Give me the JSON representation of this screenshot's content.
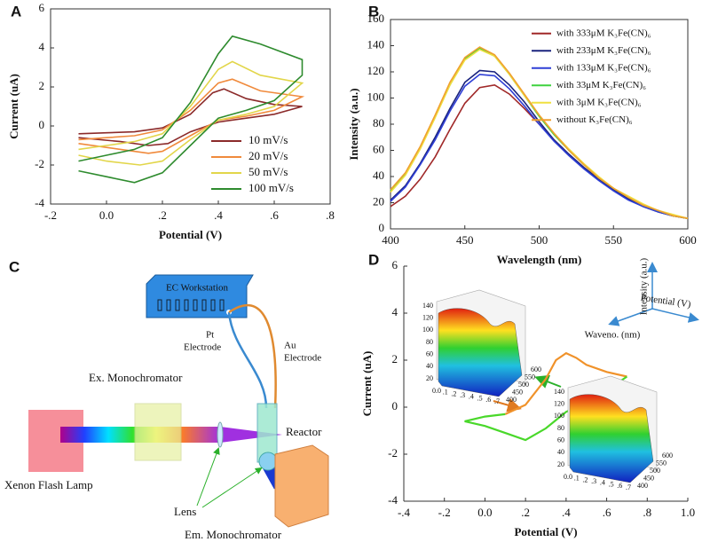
{
  "chart_data": [
    {
      "type": "line",
      "panel_label": "A",
      "xlabel": "Potential (V)",
      "ylabel": "Current (uA)",
      "xlim": [
        -0.2,
        0.8
      ],
      "ylim": [
        -4,
        6
      ],
      "xticks": [
        {
          "value": -0.2,
          "label": "-.2"
        },
        {
          "value": 0,
          "label": "0.0"
        },
        {
          "value": 0.2,
          "label": ".2"
        },
        {
          "value": 0.4,
          "label": ".4"
        },
        {
          "value": 0.6,
          "label": ".6"
        },
        {
          "value": 0.8,
          "label": ".8"
        }
      ],
      "yticks": [
        -4,
        -2,
        0,
        2,
        4,
        6
      ],
      "frame": true,
      "legend": "lower right",
      "series": [
        {
          "name": "10 mV/s",
          "color": "#8b2a2a",
          "x": [
            -0.1,
            0,
            0.1,
            0.2,
            0.3,
            0.38,
            0.42,
            0.5,
            0.6,
            0.7,
            0.6,
            0.5,
            0.4,
            0.3,
            0.22,
            0.15,
            0.05,
            -0.1
          ],
          "values": [
            -0.4,
            -0.35,
            -0.3,
            -0.1,
            0.6,
            1.7,
            1.9,
            1.4,
            1.1,
            1.0,
            0.6,
            0.4,
            0.2,
            -0.3,
            -0.9,
            -1.0,
            -0.8,
            -0.6
          ]
        },
        {
          "name": "20 mV/s",
          "color": "#f08a3c",
          "x": [
            -0.1,
            0,
            0.1,
            0.2,
            0.3,
            0.4,
            0.45,
            0.55,
            0.7,
            0.6,
            0.5,
            0.4,
            0.3,
            0.2,
            0.15,
            0.05,
            -0.1
          ],
          "values": [
            -0.7,
            -0.6,
            -0.5,
            -0.2,
            0.8,
            2.2,
            2.4,
            1.8,
            1.5,
            0.8,
            0.5,
            0.3,
            -0.5,
            -1.3,
            -1.4,
            -1.2,
            -0.9
          ]
        },
        {
          "name": "50 mV/s",
          "color": "#e2d64a",
          "x": [
            -0.1,
            0,
            0.1,
            0.2,
            0.3,
            0.4,
            0.45,
            0.55,
            0.7,
            0.6,
            0.5,
            0.4,
            0.3,
            0.2,
            0.12,
            0,
            -0.1
          ],
          "values": [
            -1.2,
            -1.0,
            -0.8,
            -0.4,
            1.0,
            2.9,
            3.3,
            2.6,
            2.2,
            1.0,
            0.6,
            0.3,
            -0.7,
            -1.8,
            -2.0,
            -1.8,
            -1.5
          ]
        },
        {
          "name": "100 mV/s",
          "color": "#2e8b2e",
          "x": [
            -0.1,
            0,
            0.1,
            0.2,
            0.3,
            0.4,
            0.45,
            0.55,
            0.7,
            0.7,
            0.6,
            0.5,
            0.4,
            0.3,
            0.2,
            0.1,
            0,
            -0.1
          ],
          "values": [
            -1.8,
            -1.5,
            -1.2,
            -0.6,
            1.2,
            3.7,
            4.6,
            4.2,
            3.4,
            2.6,
            1.3,
            0.8,
            0.4,
            -1.0,
            -2.4,
            -2.9,
            -2.6,
            -2.3
          ]
        }
      ]
    },
    {
      "type": "line",
      "panel_label": "B",
      "xlabel": "Wavelength (nm)",
      "ylabel": "Intensity (a.u.)",
      "xlim": [
        400,
        600
      ],
      "ylim": [
        0,
        160
      ],
      "xticks": [
        400,
        450,
        500,
        550,
        600
      ],
      "yticks": [
        0,
        20,
        40,
        60,
        80,
        100,
        120,
        140,
        160
      ],
      "frame": true,
      "legend": "upper right",
      "x": [
        400,
        410,
        420,
        430,
        440,
        450,
        460,
        470,
        480,
        490,
        500,
        510,
        520,
        530,
        540,
        550,
        560,
        570,
        580,
        590,
        600
      ],
      "series": [
        {
          "name": "with 333μM K₃Fe(CN)₆",
          "color": "#a02828",
          "values": [
            17,
            25,
            38,
            55,
            76,
            96,
            108,
            110,
            103,
            92,
            80,
            68,
            57,
            47,
            38,
            30,
            24,
            18,
            13,
            10,
            8
          ]
        },
        {
          "name": "with 233μM K₃Fe(CN)₆",
          "color": "#1a237e",
          "values": [
            22,
            33,
            50,
            70,
            92,
            112,
            121,
            120,
            110,
            97,
            82,
            68,
            57,
            47,
            38,
            30,
            23,
            17,
            13,
            10,
            8
          ]
        },
        {
          "name": "with 133μM K₃Fe(CN)₆",
          "color": "#2f3fd6",
          "values": [
            21,
            32,
            49,
            68,
            90,
            109,
            118,
            117,
            107,
            94,
            80,
            67,
            56,
            46,
            37,
            29,
            22,
            17,
            13,
            10,
            8
          ]
        },
        {
          "name": "with 33μM K₃Fe(CN)₆",
          "color": "#3fd23f",
          "values": [
            29,
            42,
            62,
            86,
            110,
            130,
            138,
            132,
            118,
            102,
            86,
            72,
            60,
            49,
            39,
            31,
            24,
            18,
            14,
            10,
            8
          ]
        },
        {
          "name": "with 3μM K₃Fe(CN)₆",
          "color": "#f0e040",
          "values": [
            28,
            41,
            61,
            85,
            110,
            129,
            137,
            132,
            118,
            102,
            87,
            73,
            61,
            50,
            40,
            31,
            25,
            19,
            14,
            11,
            8
          ]
        },
        {
          "name": "without K₃Fe(CN)₆",
          "color": "#f0a030",
          "values": [
            30,
            43,
            63,
            87,
            112,
            131,
            139,
            133,
            119,
            103,
            87,
            73,
            60,
            49,
            39,
            31,
            24,
            18,
            14,
            10,
            8
          ]
        }
      ]
    },
    {
      "type": "line",
      "panel_label": "D",
      "xlabel": "Potential (V)",
      "ylabel": "Current (uA)",
      "xlim": [
        -0.4,
        1.0
      ],
      "ylim": [
        -4,
        6
      ],
      "xticks": [
        {
          "value": -0.4,
          "label": "-.4"
        },
        {
          "value": -0.2,
          "label": "-.2"
        },
        {
          "value": 0,
          "label": "0.0"
        },
        {
          "value": 0.2,
          "label": ".2"
        },
        {
          "value": 0.4,
          "label": ".4"
        },
        {
          "value": 0.6,
          "label": ".6"
        },
        {
          "value": 0.8,
          "label": ".8"
        },
        {
          "value": 1.0,
          "label": "1.0"
        }
      ],
      "yticks": [
        -4,
        -2,
        0,
        2,
        4,
        6
      ],
      "frame": false,
      "series": [
        {
          "color": "#f0922a",
          "x": [
            0.1,
            0.2,
            0.3,
            0.35,
            0.4,
            0.45,
            0.5,
            0.6,
            0.7
          ],
          "values": [
            -0.3,
            0.1,
            1.2,
            2.0,
            2.3,
            2.1,
            1.8,
            1.5,
            1.3
          ]
        },
        {
          "color": "#49d82a",
          "x": [
            0.7,
            0.6,
            0.5,
            0.4,
            0.3,
            0.2,
            0.1,
            0,
            -0.1,
            0,
            0.1
          ],
          "values": [
            1.3,
            0.7,
            0.2,
            -0.2,
            -0.9,
            -1.4,
            -1.1,
            -0.8,
            -0.6,
            -0.4,
            -0.3
          ]
        }
      ],
      "annotations": [
        "Intensity (a.u.)",
        "Potential (V)",
        "Waveno. (nm)"
      ],
      "inset": {
        "z_ticks": [
          20,
          40,
          60,
          80,
          100,
          120,
          140
        ],
        "wavelength_ticks": [
          400,
          450,
          500,
          550,
          600
        ],
        "potential_ticks": [
          {
            "value": 0,
            "label": "0.0"
          },
          {
            "value": 0.1,
            "label": ".1"
          },
          {
            "value": 0.2,
            "label": ".2"
          },
          {
            "value": 0.3,
            "label": ".3"
          },
          {
            "value": 0.4,
            "label": ".4"
          },
          {
            "value": 0.5,
            "label": ".5"
          },
          {
            "value": 0.6,
            "label": ".6"
          },
          {
            "value": 0.7,
            "label": ".7"
          }
        ]
      }
    }
  ],
  "diagram": {
    "panel_label": "C",
    "workstation": "EC Workstation",
    "pt_electrode": [
      "Pt",
      "Electrode"
    ],
    "au_electrode": [
      "Au",
      "Electrode"
    ],
    "ex_monochromator": "Ex. Monochromator",
    "reactor": "Reactor",
    "lamp": "Xenon Flash Lamp",
    "lens": "Lens",
    "em_monochromator": "Em. Monochromator"
  }
}
